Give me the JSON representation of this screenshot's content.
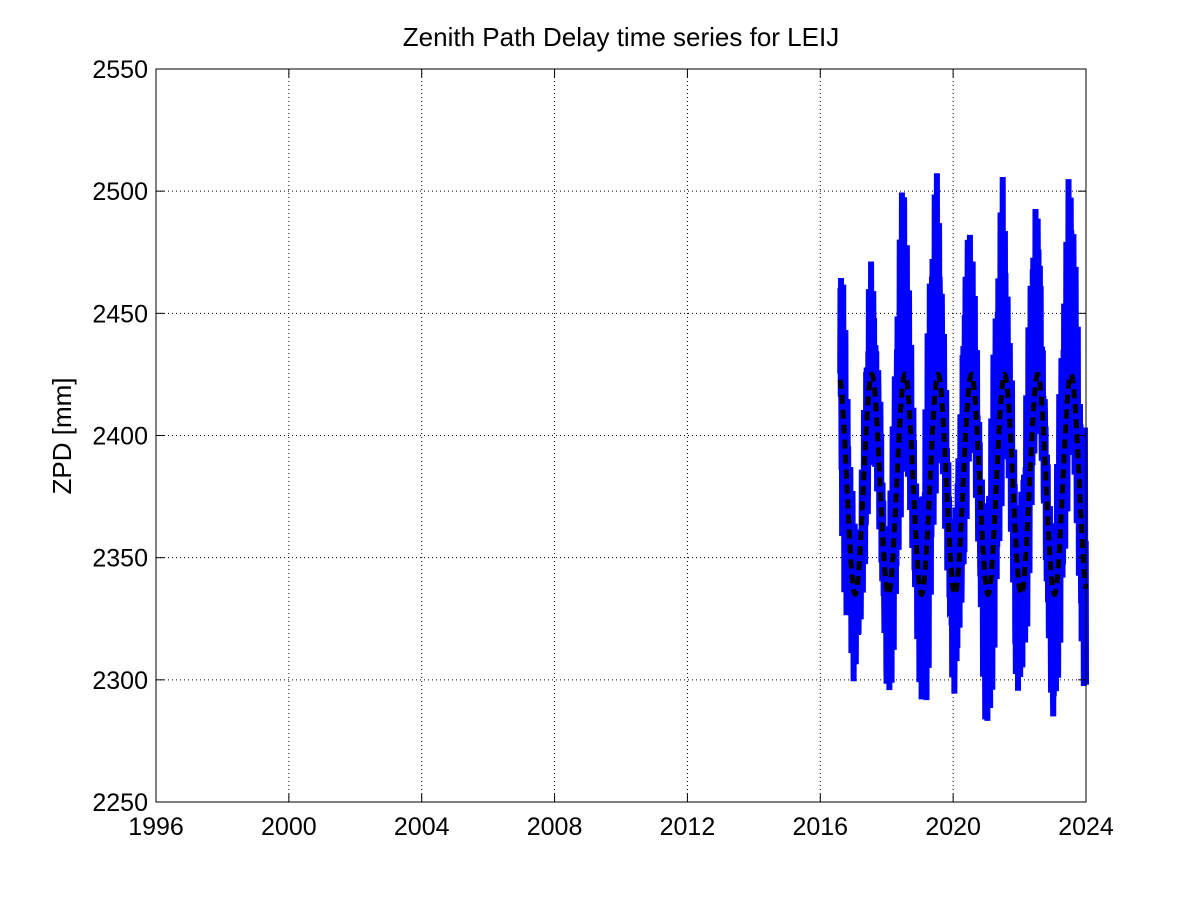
{
  "chart_data": {
    "type": "line",
    "title": "Zenith Path Delay time series for LEIJ",
    "xlabel": "",
    "ylabel": "ZPD [mm]",
    "xlim": [
      1996,
      2024
    ],
    "ylim": [
      2250,
      2550
    ],
    "xticks": [
      "1996",
      "2000",
      "2004",
      "2008",
      "2012",
      "2016",
      "2020",
      "2024"
    ],
    "yticks": [
      "2250",
      "2300",
      "2350",
      "2400",
      "2450",
      "2500",
      "2550"
    ],
    "grid": true,
    "series": [
      {
        "style": "solid",
        "color": "#0000ff",
        "x": [
          2016.6,
          2016.7,
          2016.8,
          2016.9,
          2017.0,
          2017.1,
          2017.2,
          2017.3,
          2017.4,
          2017.5,
          2017.6,
          2017.7,
          2017.8,
          2017.9,
          2018.0,
          2018.1,
          2018.2,
          2018.3,
          2018.4,
          2018.5,
          2018.6,
          2018.7,
          2018.8,
          2018.9,
          2019.0,
          2019.1,
          2019.2,
          2019.3,
          2019.4,
          2019.5,
          2019.6,
          2019.7,
          2019.8,
          2019.9,
          2020.0,
          2020.1,
          2020.2,
          2020.3,
          2020.4,
          2020.5,
          2020.6,
          2020.7,
          2020.8,
          2020.9,
          2021.0,
          2021.1,
          2021.2,
          2021.3,
          2021.4,
          2021.5,
          2021.6,
          2021.7,
          2021.8,
          2021.9,
          2022.0,
          2022.1,
          2022.2,
          2022.3,
          2022.4,
          2022.5,
          2022.6,
          2022.7,
          2022.8,
          2022.9,
          2023.0,
          2023.1,
          2023.2,
          2023.3,
          2023.4,
          2023.5,
          2023.6,
          2023.7,
          2023.8,
          2023.9,
          2024.0
        ],
        "y_high": [
          2480,
          2462,
          2430,
          2395,
          2372,
          2355,
          2368,
          2410,
          2450,
          2484,
          2470,
          2446,
          2430,
          2380,
          2370,
          2384,
          2420,
          2460,
          2490,
          2515,
          2490,
          2450,
          2420,
          2378,
          2372,
          2390,
          2430,
          2470,
          2498,
          2513,
          2490,
          2455,
          2420,
          2380,
          2370,
          2386,
          2425,
          2460,
          2490,
          2503,
          2480,
          2448,
          2412,
          2376,
          2372,
          2395,
          2430,
          2462,
          2488,
          2508,
          2478,
          2440,
          2418,
          2378,
          2373,
          2390,
          2428,
          2466,
          2496,
          2512,
          2490,
          2448,
          2416,
          2380,
          2372,
          2384,
          2426,
          2458,
          2480,
          2519,
          2495,
          2466,
          2430,
          2400,
          2405
        ],
        "y_low": [
          2371,
          2340,
          2321,
          2313,
          2298,
          2305,
          2319,
          2335,
          2340,
          2380,
          2378,
          2365,
          2345,
          2324,
          2283,
          2281,
          2300,
          2320,
          2355,
          2380,
          2384,
          2370,
          2342,
          2320,
          2295,
          2278,
          2290,
          2310,
          2348,
          2380,
          2388,
          2376,
          2344,
          2320,
          2280,
          2294,
          2300,
          2320,
          2348,
          2382,
          2390,
          2366,
          2332,
          2298,
          2272,
          2276,
          2299,
          2324,
          2352,
          2384,
          2396,
          2374,
          2338,
          2284,
          2299,
          2296,
          2303,
          2334,
          2362,
          2386,
          2391,
          2370,
          2331,
          2304,
          2265,
          2286,
          2300,
          2323,
          2354,
          2384,
          2393,
          2372,
          2331,
          2296,
          2297
        ]
      },
      {
        "style": "dashed",
        "color": "#000000",
        "model": "seasonal",
        "mean": 2380,
        "amplitude": 45,
        "period_years": 1,
        "peak": 2017.55,
        "x_start": 2016.6,
        "x_end": 2024.0
      }
    ]
  }
}
